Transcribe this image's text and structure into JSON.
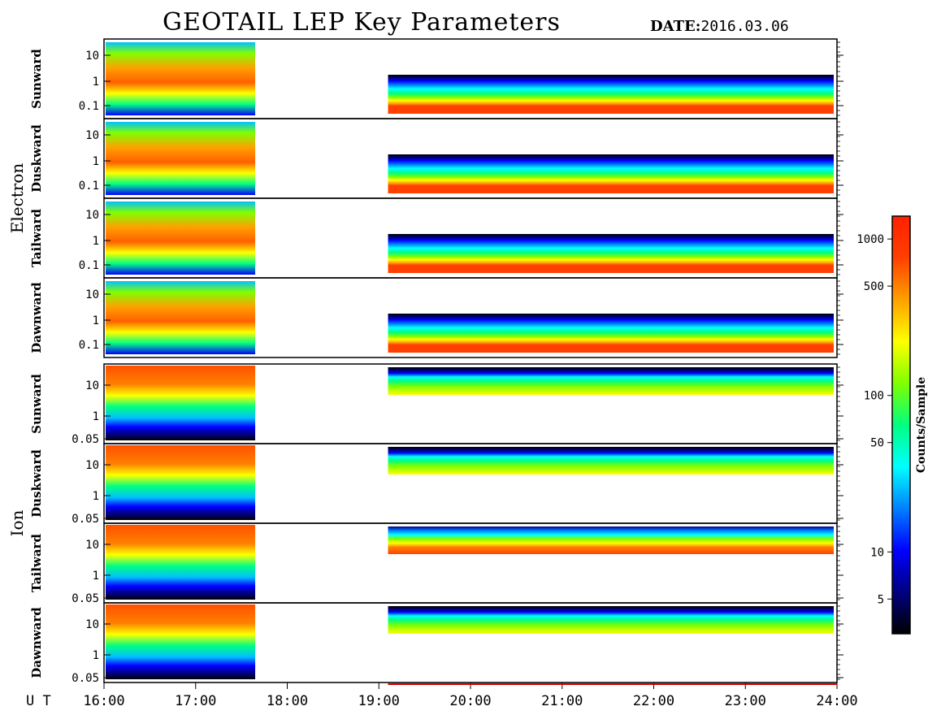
{
  "title": "GEOTAIL LEP Key Parameters",
  "date_label": "DATE:",
  "date_value": "2016.03.06",
  "chart_data": {
    "type": "heatmap",
    "x_axis_label": "U T",
    "x_ticks": [
      "16:00",
      "17:00",
      "18:00",
      "19:00",
      "20:00",
      "21:00",
      "22:00",
      "23:00",
      "24:00"
    ],
    "x_range_hours": [
      16,
      24
    ],
    "data_gap_hours": [
      17.65,
      19.1
    ],
    "groups": [
      {
        "name": "Electron",
        "panels": [
          {
            "name": "Sunward",
            "y_ticks": [
              "10",
              "1",
              "0.1"
            ]
          },
          {
            "name": "Duskward",
            "y_ticks": [
              "10",
              "1",
              "0.1"
            ]
          },
          {
            "name": "Tailward",
            "y_ticks": [
              "10",
              "1",
              "0.1"
            ]
          },
          {
            "name": "Dawnward",
            "y_ticks": [
              "10",
              "1",
              "0.1"
            ]
          }
        ]
      },
      {
        "name": "Ion",
        "panels": [
          {
            "name": "Sunward",
            "y_ticks": [
              "10",
              "1",
              "0.05"
            ]
          },
          {
            "name": "Duskward",
            "y_ticks": [
              "10",
              "1",
              "0.05"
            ]
          },
          {
            "name": "Tailward",
            "y_ticks": [
              "10",
              "1",
              "0.05"
            ]
          },
          {
            "name": "Dawnward",
            "y_ticks": [
              "10",
              "1",
              "0.05"
            ]
          }
        ]
      }
    ],
    "colorbar": {
      "label": "Counts/Sample",
      "scale": "log",
      "range": [
        3,
        1400
      ],
      "ticks": [
        "1000",
        "500",
        "100",
        "50",
        "10",
        "5"
      ],
      "tick_values": [
        1000,
        500,
        100,
        50,
        10,
        5
      ],
      "colormap": [
        "#000000",
        "#000080",
        "#0000ff",
        "#0080ff",
        "#00ffff",
        "#00ff80",
        "#80ff00",
        "#ffff00",
        "#ffa000",
        "#ff4000",
        "#ff2000"
      ]
    }
  }
}
